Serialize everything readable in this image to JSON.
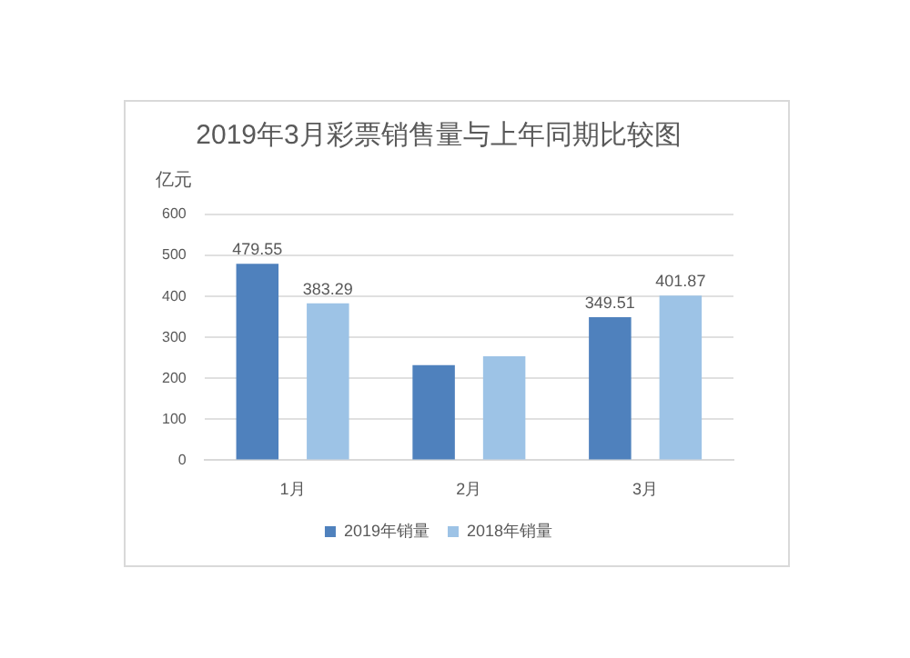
{
  "chart_data": {
    "type": "bar",
    "title": "2019年3月彩票销售量与上年同期比较图",
    "ylabel": "亿元",
    "categories": [
      "1月",
      "2月",
      "3月"
    ],
    "series": [
      {
        "name": "2019年销量",
        "color": "#4f81bd",
        "values": [
          479.55,
          232,
          349.51
        ],
        "value_labels": [
          "479.55",
          null,
          "349.51"
        ]
      },
      {
        "name": "2018年销量",
        "color": "#9dc3e6",
        "values": [
          383.29,
          254,
          401.87
        ],
        "value_labels": [
          "383.29",
          null,
          "401.87"
        ]
      }
    ],
    "ylim": [
      0,
      600
    ],
    "yticks": [
      0,
      100,
      200,
      300,
      400,
      500,
      600
    ],
    "grid": "y",
    "legend": "bottom"
  }
}
